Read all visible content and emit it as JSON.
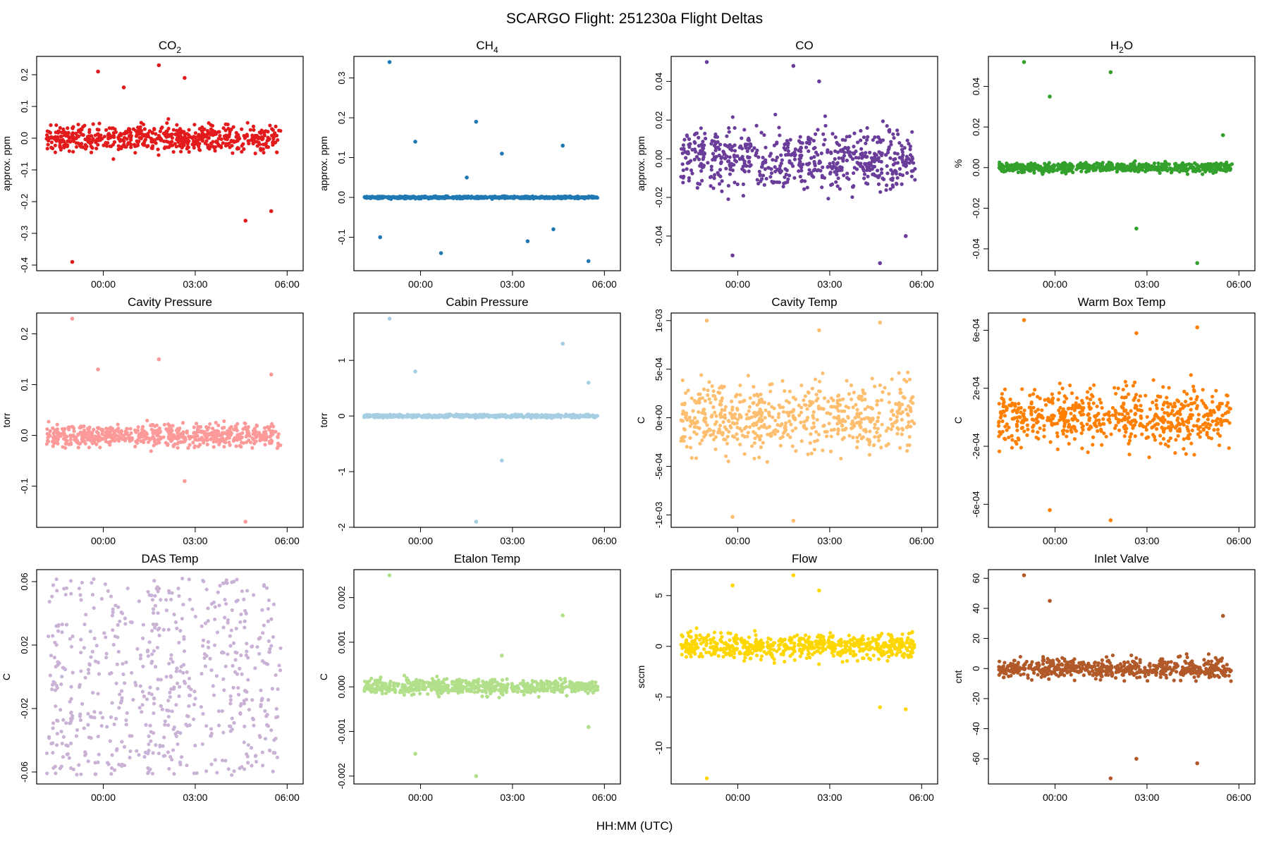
{
  "figure": {
    "title": "SCARGO Flight: 251230a  Flight Deltas",
    "xlabel": "HH:MM (UTC)"
  },
  "x_ticks": [
    "00:00",
    "03:00",
    "06:00"
  ],
  "chart_data": [
    {
      "type": "scatter",
      "title_main": "CO",
      "title_sub": "2",
      "ylabel": "approx. ppm",
      "color": "#e31a1c",
      "ylim": [
        -0.4,
        0.24
      ],
      "yticks": [
        -0.4,
        -0.3,
        -0.2,
        -0.1,
        0.0,
        0.1,
        0.2
      ],
      "yticklabels": [
        "-0.4",
        "-0.3",
        "-0.2",
        "-0.1",
        "0.0",
        "0.1",
        "0.2"
      ],
      "band": [
        -0.08,
        0.08
      ],
      "extremes": [
        -0.39,
        0.23,
        -0.26,
        0.21,
        0.19,
        -0.23,
        0.16
      ]
    },
    {
      "type": "scatter",
      "title_main": "CH",
      "title_sub": "4",
      "ylabel": "approx. ppm",
      "color": "#1f78b4",
      "ylim": [
        -0.17,
        0.34
      ],
      "yticks": [
        -0.1,
        0.0,
        0.1,
        0.2,
        0.3
      ],
      "yticklabels": [
        "-0.1",
        "0.0",
        "0.1",
        "0.2",
        "0.3"
      ],
      "band": [
        -0.005,
        0.005
      ],
      "extremes": [
        0.34,
        0.19,
        0.13,
        0.14,
        0.11,
        -0.16,
        -0.14,
        -0.11,
        -0.1,
        0.05,
        -0.08
      ]
    },
    {
      "type": "scatter",
      "title_main": "CO",
      "title_sub": "",
      "ylabel": "approx. ppm",
      "color": "#6a3d9a",
      "ylim": [
        -0.055,
        0.05
      ],
      "yticks": [
        -0.04,
        -0.02,
        0.0,
        0.02,
        0.04
      ],
      "yticklabels": [
        "-0.04",
        "-0.02",
        "0.00",
        "0.02",
        "0.04"
      ],
      "band": [
        -0.028,
        0.028
      ],
      "extremes": [
        0.05,
        0.048,
        -0.054,
        -0.05,
        0.04,
        -0.04
      ]
    },
    {
      "type": "scatter",
      "title_main": "H",
      "title_sub": "2",
      "title_tail": "O",
      "ylabel": "%",
      "color": "#33a02c",
      "ylim": [
        -0.048,
        0.052
      ],
      "yticks": [
        -0.04,
        -0.02,
        0.0,
        0.02,
        0.04
      ],
      "yticklabels": [
        "-0.04",
        "-0.02",
        "0.00",
        "0.02",
        "0.04"
      ],
      "band": [
        -0.004,
        0.004
      ],
      "extremes": [
        0.052,
        0.047,
        -0.047,
        0.035,
        -0.03,
        0.016
      ]
    },
    {
      "type": "scatter",
      "title_main": "Cavity Pressure",
      "title_sub": "",
      "ylabel": "torr",
      "color": "#fb9a99",
      "ylim": [
        -0.17,
        0.23
      ],
      "yticks": [
        -0.1,
        0.0,
        0.1,
        0.2
      ],
      "yticklabels": [
        "-0.1",
        "0.0",
        "0.1",
        "0.2"
      ],
      "band": [
        -0.04,
        0.04
      ],
      "extremes": [
        0.23,
        0.15,
        -0.17,
        0.13,
        -0.09,
        0.12
      ]
    },
    {
      "type": "scatter",
      "title_main": "Cabin Pressure",
      "title_sub": "",
      "ylabel": "torr",
      "color": "#a6cee3",
      "ylim": [
        -1.9,
        1.75
      ],
      "yticks": [
        -2,
        -1,
        0,
        1
      ],
      "yticklabels": [
        "-2",
        "-1",
        "0",
        "1"
      ],
      "band": [
        -0.05,
        0.05
      ],
      "extremes": [
        1.75,
        -1.9,
        1.3,
        0.8,
        -0.8,
        0.6
      ]
    },
    {
      "type": "scatter",
      "title_main": "Cavity Temp",
      "title_sub": "",
      "ylabel": "C",
      "color": "#fdbf6f",
      "ylim": [
        -0.00107,
        0.00102
      ],
      "yticks": [
        -0.001,
        -0.0005,
        0.0,
        0.0005,
        0.001
      ],
      "yticklabels": [
        "-1e-03",
        "-5e-04",
        "0e+00",
        "5e-04",
        "1e-03"
      ],
      "band": [
        -0.00063,
        0.00063
      ],
      "extremes": [
        0.001,
        -0.00106,
        0.00098,
        -0.00102,
        0.0009
      ]
    },
    {
      "type": "scatter",
      "title_main": "Warm Box Temp",
      "title_sub": "",
      "ylabel": "C",
      "color": "#ff7f00",
      "ylim": [
        -0.00072,
        0.00068
      ],
      "yticks": [
        -0.0006,
        -0.0002,
        0.0002,
        0.0006
      ],
      "yticklabels": [
        "-6e-04",
        "-2e-04",
        "2e-04",
        "6e-04"
      ],
      "band": [
        -0.00036,
        0.00036
      ],
      "extremes": [
        0.00067,
        -0.00071,
        0.00062,
        -0.00064,
        0.00058
      ]
    },
    {
      "type": "scatter",
      "title_main": "DAS Temp",
      "title_sub": "",
      "ylabel": "C",
      "color": "#cab2d6",
      "ylim": [
        -0.064,
        0.064
      ],
      "yticks": [
        -0.06,
        -0.02,
        0.02,
        0.06
      ],
      "yticklabels": [
        "-0.06",
        "-0.02",
        "0.02",
        "0.06"
      ],
      "band": [
        -0.062,
        0.062
      ],
      "extremes": []
    },
    {
      "type": "scatter",
      "title_main": "Etalon Temp",
      "title_sub": "",
      "ylabel": "C",
      "color": "#b2df8a",
      "ylim": [
        -0.00205,
        0.0025
      ],
      "yticks": [
        -0.002,
        -0.001,
        0.0,
        0.001,
        0.002
      ],
      "yticklabels": [
        "-0.002",
        "-0.001",
        "0.000",
        "0.001",
        "0.002"
      ],
      "band": [
        -0.0003,
        0.0003
      ],
      "extremes": [
        0.0025,
        -0.002,
        0.0016,
        -0.0015,
        0.0007,
        -0.0009
      ]
    },
    {
      "type": "scatter",
      "title_main": "Flow",
      "title_sub": "",
      "ylabel": "sccm",
      "color": "#ffd700",
      "ylim": [
        -13,
        7
      ],
      "yticks": [
        -10,
        -5,
        0,
        5
      ],
      "yticklabels": [
        "-10",
        "-5",
        "0",
        "5"
      ],
      "band": [
        -2.2,
        2.2
      ],
      "extremes": [
        -13,
        7,
        -6,
        6,
        5.5,
        -6.2
      ]
    },
    {
      "type": "scatter",
      "title_main": "Inlet Valve",
      "title_sub": "",
      "ylabel": "cnt",
      "color": "#b15928",
      "ylim": [
        -73,
        62
      ],
      "yticks": [
        -60,
        -40,
        -20,
        0,
        20,
        40,
        60
      ],
      "yticklabels": [
        "-60",
        "-40",
        "-20",
        "0",
        "20",
        "40",
        "60"
      ],
      "band": [
        -12,
        12
      ],
      "extremes": [
        62,
        -73,
        -63,
        45,
        -60,
        35
      ]
    }
  ]
}
